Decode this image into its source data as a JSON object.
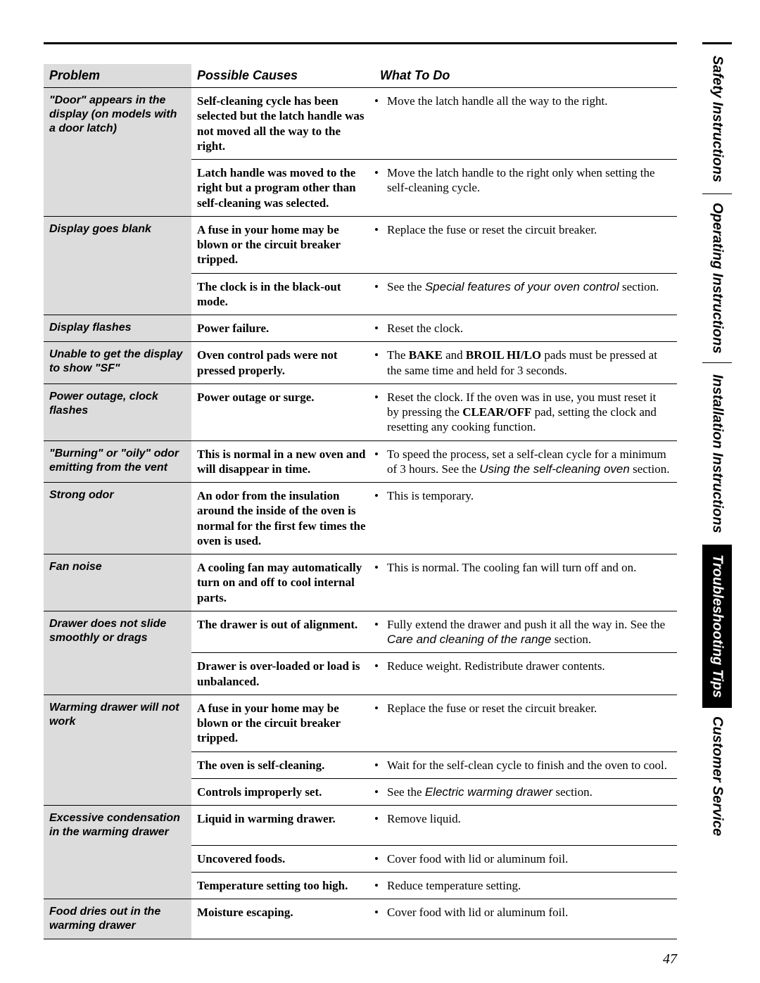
{
  "pageNumber": "47",
  "headers": {
    "problem": "Problem",
    "cause": "Possible Causes",
    "action": "What To Do"
  },
  "rows": [
    {
      "problem": "\"Door\" appears in the display (on models with a door latch)",
      "cause": "Self-cleaning cycle has been selected but the latch handle was not moved all the way to the right.",
      "actionHtml": "Move the latch handle all the way to the right.",
      "problemContinues": true
    },
    {
      "problem": "",
      "cause": "Latch handle was moved to the right but a program other than self-cleaning was selected.",
      "actionHtml": "Move the latch handle to the right only when setting the self-cleaning cycle."
    },
    {
      "problem": "Display goes blank",
      "cause": "A fuse in your home may be blown or the circuit breaker tripped.",
      "actionHtml": "Replace the fuse or reset the circuit breaker.",
      "problemContinues": true
    },
    {
      "problem": "",
      "cause": "The clock is in the black-out mode.",
      "actionHtml": "See the <span class=\"sans-italic\">Special features of your oven control</span> section."
    },
    {
      "problem": "Display flashes",
      "cause": "Power failure.",
      "actionHtml": "Reset the clock."
    },
    {
      "problem": "Unable to get the display to show \"SF\"",
      "cause": "Oven control pads were not pressed properly.",
      "actionHtml": "The <b>BAKE</b> and <b>BROIL HI/LO</b> pads must be pressed at the same time and held for 3 seconds."
    },
    {
      "problem": "Power outage, clock flashes",
      "cause": "Power outage or surge.",
      "actionHtml": "Reset the clock. If the oven was in use, you must reset it by pressing the <b>CLEAR/OFF</b> pad, setting the clock and resetting any cooking function."
    },
    {
      "problem": "\"Burning\" or \"oily\" odor emitting from the vent",
      "cause": "This is normal in a new oven and will disappear in time.",
      "actionHtml": "To speed the process, set a self-clean cycle for a minimum of 3 hours. See the <span class=\"sans-italic\">Using the self-cleaning oven</span> section."
    },
    {
      "problem": "Strong odor",
      "cause": "An odor from the insulation around the inside of the oven is normal for the first few times the oven is used.",
      "actionHtml": "This is temporary."
    },
    {
      "problem": "Fan noise",
      "cause": "A cooling fan may automatically turn on and off to cool internal parts.",
      "actionHtml": "This is normal. The cooling fan will turn off and on."
    },
    {
      "problem": "Drawer does not slide smoothly or drags",
      "cause": "The drawer is out of alignment.",
      "actionHtml": "Fully extend the drawer and push it all the way in. See the <span class=\"sans-italic\">Care and cleaning of the range</span> section.",
      "problemContinues": true
    },
    {
      "problem": "",
      "cause": "Drawer is over-loaded or load is unbalanced.",
      "actionHtml": "Reduce weight. Redistribute drawer contents."
    },
    {
      "problem": "Warming drawer will not work",
      "cause": "A fuse in your home may be blown or the circuit breaker tripped.",
      "actionHtml": "Replace the fuse or reset the circuit breaker.",
      "problemContinues": true
    },
    {
      "problem": "",
      "cause": "The oven is self-cleaning.",
      "actionHtml": "Wait for the self-clean cycle to finish and the oven to cool.",
      "problemContinues": true
    },
    {
      "problem": "",
      "cause": "Controls improperly set.",
      "actionHtml": "See the <span class=\"sans-italic\">Electric warming drawer</span> section."
    },
    {
      "problem": "Excessive condensation in the warming drawer",
      "cause": "Liquid in warming drawer.",
      "actionHtml": "Remove liquid.",
      "problemContinues": true
    },
    {
      "problem": "",
      "cause": "Uncovered foods.",
      "actionHtml": "Cover food with lid or aluminum foil.",
      "problemContinues": true
    },
    {
      "problem": "",
      "cause": "Temperature setting too high.",
      "actionHtml": "Reduce temperature setting."
    },
    {
      "problem": "Food dries out in the warming drawer",
      "cause": "Moisture escaping.",
      "actionHtml": "Cover food with lid or aluminum foil."
    }
  ],
  "tabs": [
    {
      "label": "Safety Instructions",
      "active": false,
      "flex": 2.1
    },
    {
      "label": "Operating Instructions",
      "active": false,
      "flex": 2.4
    },
    {
      "label": "Installation Instructions",
      "active": false,
      "flex": 2.6
    },
    {
      "label": "Troubleshooting Tips",
      "active": true,
      "flex": 2.3
    },
    {
      "label": "Customer Service",
      "active": false,
      "flex": 1.9
    }
  ]
}
